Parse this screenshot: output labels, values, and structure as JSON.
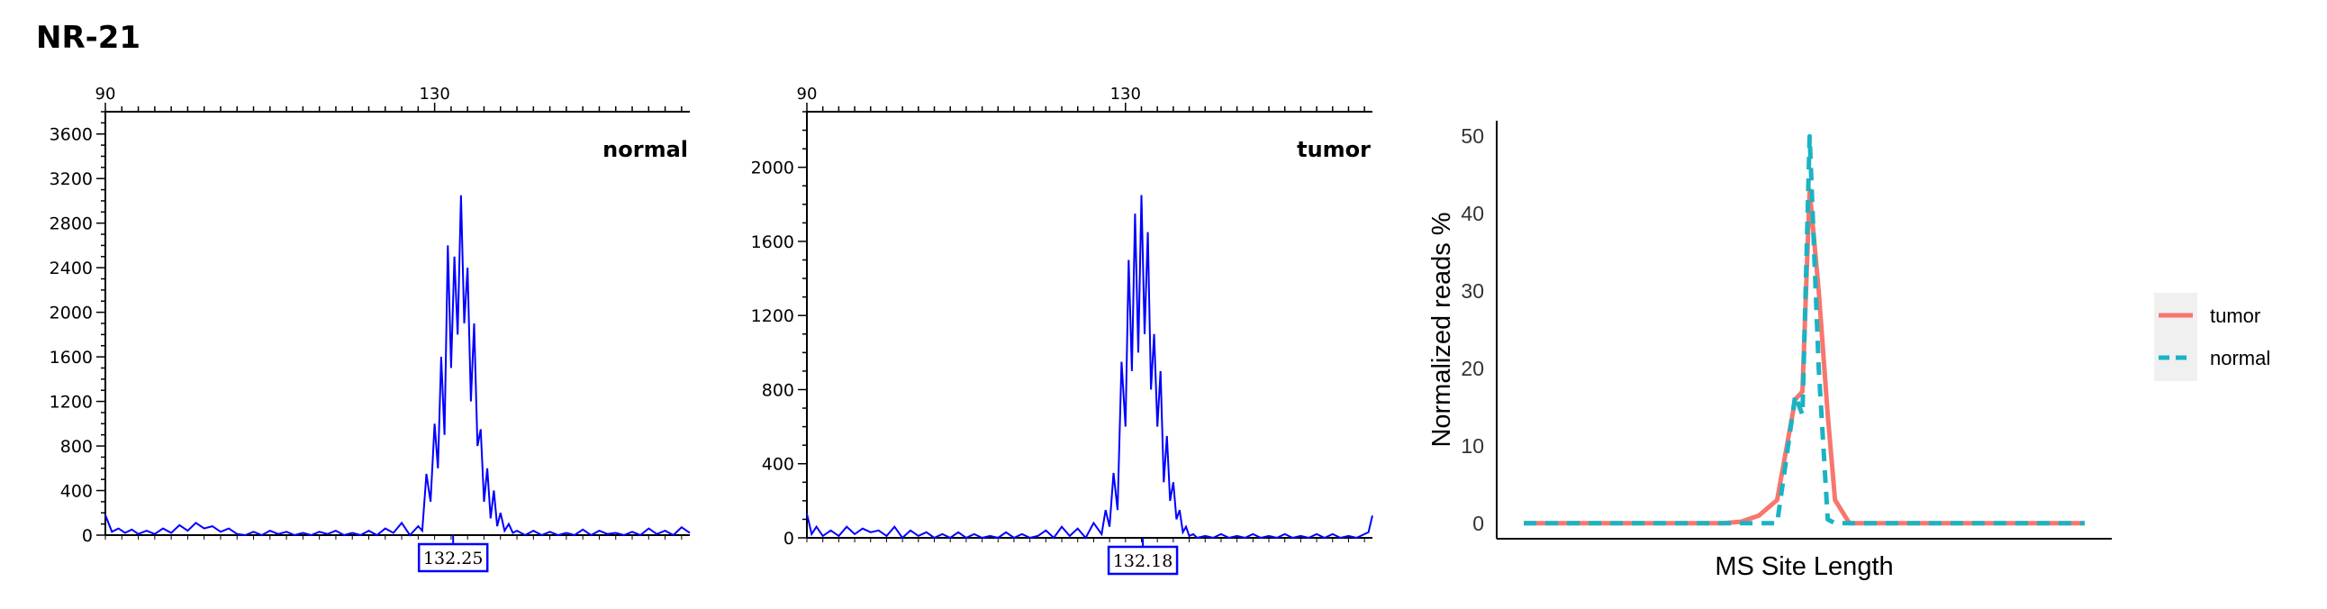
{
  "figure_title": "NR-21",
  "colors": {
    "trace": "#0000ff",
    "tumor": "#f8766d",
    "normal": "#1ab3c2",
    "axis": "#000000",
    "legend_bg": "#f0f0f0"
  },
  "chart_data": [
    {
      "type": "line",
      "panel_label": "normal",
      "x_top_ticks": [
        "90",
        "130"
      ],
      "x_top_tick_values": [
        90,
        130
      ],
      "xlim": [
        90,
        161
      ],
      "y_ticks": [
        0,
        400,
        800,
        1200,
        1600,
        2000,
        2400,
        2800,
        3200,
        3600
      ],
      "ylim": [
        0,
        3800
      ],
      "peak_label": "132.25",
      "peak_x": 132.25,
      "series": [
        {
          "x": [
            90,
            90.8,
            91.6,
            92.4,
            93.2,
            94,
            95,
            96,
            97,
            98,
            99,
            100,
            101,
            102,
            103,
            104,
            105,
            106,
            107,
            108,
            109,
            110,
            111,
            112,
            113,
            114,
            115,
            116,
            117,
            118,
            119,
            120,
            121,
            122,
            123,
            124,
            125,
            126,
            127,
            128,
            128.5,
            129,
            129.5,
            130,
            130.4,
            130.8,
            131.2,
            131.6,
            132,
            132.4,
            132.8,
            133.2,
            133.6,
            134,
            134.4,
            134.8,
            135.2,
            135.6,
            136,
            136.4,
            136.8,
            137.2,
            137.6,
            138,
            138.5,
            139,
            139.5,
            140,
            141,
            142,
            143,
            144,
            145,
            146,
            147,
            148,
            149,
            150,
            151,
            152,
            153,
            154,
            155,
            156,
            157,
            158,
            159,
            160,
            161
          ],
          "y": [
            180,
            30,
            60,
            20,
            50,
            10,
            40,
            10,
            60,
            20,
            90,
            40,
            110,
            60,
            80,
            30,
            60,
            10,
            0,
            30,
            0,
            40,
            10,
            30,
            0,
            20,
            0,
            30,
            10,
            40,
            0,
            20,
            0,
            40,
            0,
            60,
            20,
            110,
            0,
            80,
            40,
            550,
            300,
            1000,
            600,
            1600,
            900,
            2600,
            1500,
            2500,
            1800,
            3050,
            1900,
            2400,
            1200,
            1900,
            800,
            950,
            300,
            600,
            150,
            400,
            80,
            200,
            40,
            100,
            20,
            40,
            0,
            40,
            0,
            30,
            0,
            20,
            0,
            50,
            0,
            40,
            10,
            20,
            0,
            30,
            0,
            60,
            10,
            40,
            0,
            70,
            20
          ]
        }
      ]
    },
    {
      "type": "line",
      "panel_label": "tumor",
      "x_top_ticks": [
        "90",
        "130"
      ],
      "x_top_tick_values": [
        90,
        130
      ],
      "xlim": [
        90,
        161
      ],
      "y_ticks": [
        0,
        400,
        800,
        1200,
        1600,
        2000
      ],
      "ylim": [
        0,
        2300
      ],
      "peak_label": "132.18",
      "peak_x": 132.18,
      "series": [
        {
          "x": [
            90,
            90.6,
            91.2,
            92,
            93,
            94,
            95,
            96,
            97,
            98,
            99,
            100,
            101,
            102,
            103,
            104,
            105,
            106,
            107,
            108,
            109,
            110,
            111,
            112,
            113,
            114,
            115,
            116,
            117,
            118,
            119,
            120,
            121,
            122,
            123,
            124,
            125,
            126,
            127,
            127.5,
            128,
            128.5,
            129,
            129.5,
            130,
            130.4,
            130.8,
            131.2,
            131.6,
            132,
            132.4,
            132.8,
            133.2,
            133.6,
            134,
            134.4,
            134.8,
            135.2,
            135.6,
            136,
            136.4,
            136.8,
            137.2,
            137.6,
            138,
            138.5,
            139,
            140,
            141,
            142,
            143,
            144,
            145,
            146,
            147,
            148,
            149,
            150,
            151,
            152,
            153,
            154,
            155,
            156,
            157,
            158,
            159,
            160,
            160.5,
            161
          ],
          "y": [
            130,
            20,
            60,
            10,
            40,
            10,
            60,
            20,
            50,
            30,
            40,
            10,
            60,
            0,
            40,
            10,
            30,
            0,
            20,
            0,
            30,
            0,
            20,
            0,
            10,
            0,
            30,
            0,
            20,
            0,
            10,
            40,
            0,
            60,
            10,
            50,
            0,
            80,
            20,
            150,
            60,
            350,
            150,
            950,
            600,
            1500,
            900,
            1750,
            1000,
            1850,
            1100,
            1650,
            800,
            1100,
            600,
            900,
            300,
            550,
            200,
            300,
            100,
            150,
            30,
            60,
            10,
            20,
            0,
            10,
            0,
            20,
            0,
            10,
            0,
            20,
            0,
            10,
            0,
            20,
            0,
            10,
            0,
            20,
            0,
            20,
            0,
            10,
            0,
            20,
            30,
            120
          ]
        }
      ]
    },
    {
      "type": "line",
      "xlabel": "MS Site Length",
      "ylabel": "Normalized reads %",
      "y_ticks": [
        0,
        10,
        20,
        30,
        40,
        50
      ],
      "ylim": [
        -2,
        52
      ],
      "x": [
        0,
        1,
        2,
        3,
        4,
        5,
        6,
        7,
        8,
        9,
        10,
        11,
        12,
        13,
        14,
        15,
        15.4,
        15.8,
        16.3,
        16.8,
        17.2,
        18,
        19,
        20,
        21,
        22,
        23,
        24,
        25,
        26,
        27,
        28,
        29,
        30,
        31
      ],
      "legend_position": "right",
      "series": [
        {
          "name": "tumor",
          "style": "solid",
          "values": [
            0,
            0,
            0,
            0,
            0,
            0,
            0,
            0,
            0,
            0,
            0,
            0,
            0.2,
            1,
            3,
            16,
            17,
            43,
            30,
            14,
            3,
            0,
            0,
            0,
            0,
            0,
            0,
            0,
            0,
            0,
            0,
            0,
            0,
            0,
            0
          ]
        },
        {
          "name": "normal",
          "style": "dashed",
          "values": [
            0,
            0,
            0,
            0,
            0,
            0,
            0,
            0,
            0,
            0,
            0,
            0,
            0,
            0,
            0,
            16.5,
            14,
            50,
            20,
            0.5,
            0,
            0,
            0,
            0,
            0,
            0,
            0,
            0,
            0,
            0,
            0,
            0,
            0,
            0,
            0
          ]
        }
      ]
    }
  ]
}
